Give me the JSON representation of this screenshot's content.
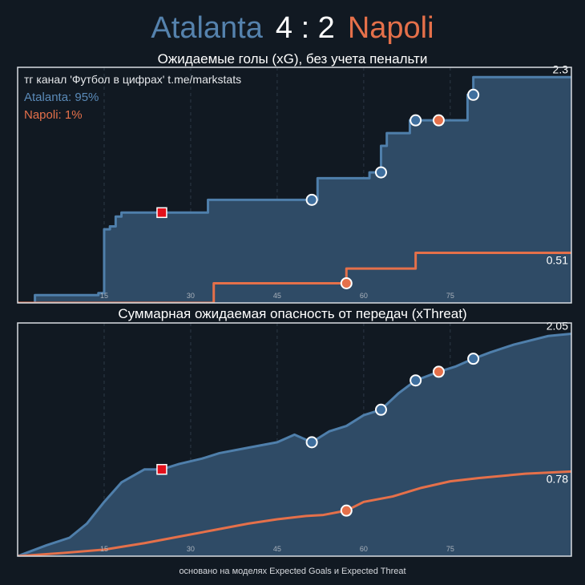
{
  "header": {
    "home": "Atalanta",
    "score": "4 : 2",
    "away": "Napoli"
  },
  "colors": {
    "home": "#4f7fab",
    "away": "#e5704a",
    "red_card": "#e3101b",
    "background": "#111922"
  },
  "footer": "основано на моделях Expected Goals и Expected Threat",
  "chart_data": [
    {
      "type": "area",
      "title": "Ожидаемые голы (xG), без учета пенальти",
      "watermark": "тг канал 'Футбол в цифрах'  t.me/markstats",
      "xlim": [
        0,
        96
      ],
      "ylim": [
        0,
        2.4
      ],
      "x_ticks": [
        "15",
        "30",
        "45",
        "60",
        "75"
      ],
      "x_tick_values": [
        15,
        30,
        45,
        60,
        75
      ],
      "end_labels": {
        "home": "2.3",
        "away": "0.51"
      },
      "series": [
        {
          "name": "Atalanta",
          "win_probability": "Atalanta: 95%",
          "step": true,
          "x": [
            0,
            3,
            12,
            14,
            15,
            16,
            17,
            18,
            25,
            32,
            33,
            42,
            51,
            52,
            60,
            61,
            62,
            63,
            64,
            67,
            68,
            73,
            74,
            78,
            79,
            96
          ],
          "y": [
            0,
            0.08,
            0.08,
            0.1,
            0.75,
            0.78,
            0.88,
            0.92,
            0.92,
            0.92,
            1.05,
            1.05,
            1.05,
            1.27,
            1.27,
            1.33,
            1.33,
            1.6,
            1.73,
            1.73,
            1.86,
            1.86,
            1.86,
            2.12,
            2.3,
            2.3
          ]
        },
        {
          "name": "Napoli",
          "win_probability": "Napoli: 1%",
          "step": true,
          "x": [
            0,
            33,
            34,
            56,
            57,
            68,
            69,
            84,
            85,
            96
          ],
          "y": [
            0,
            0,
            0.2,
            0.2,
            0.35,
            0.35,
            0.51,
            0.51,
            0.51,
            0.51
          ]
        }
      ],
      "goals_home_minutes": [
        51,
        63,
        69,
        79
      ],
      "goals_away_minutes": [
        57,
        73
      ],
      "red_card_minutes": [
        25
      ]
    },
    {
      "type": "area",
      "title": "Суммарная ожидаемая опасность от передач (xThreat)",
      "xlim": [
        0,
        96
      ],
      "ylim": [
        0,
        2.15
      ],
      "x_ticks": [
        "15",
        "30",
        "45",
        "60",
        "75"
      ],
      "x_tick_values": [
        15,
        30,
        45,
        60,
        75
      ],
      "end_labels": {
        "home": "2.05",
        "away": "0.78"
      },
      "series": [
        {
          "name": "Atalanta",
          "x": [
            0,
            5,
            9,
            12,
            15,
            18,
            22,
            25,
            28,
            32,
            35,
            40,
            45,
            48,
            51,
            54,
            57,
            60,
            63,
            66,
            69,
            73,
            76,
            79,
            82,
            86,
            92,
            96
          ],
          "y": [
            0,
            0.1,
            0.17,
            0.3,
            0.5,
            0.68,
            0.8,
            0.8,
            0.85,
            0.9,
            0.95,
            1.0,
            1.05,
            1.12,
            1.05,
            1.15,
            1.2,
            1.3,
            1.35,
            1.5,
            1.62,
            1.7,
            1.75,
            1.82,
            1.88,
            1.95,
            2.03,
            2.05
          ]
        },
        {
          "name": "Napoli",
          "x": [
            0,
            8,
            15,
            22,
            28,
            34,
            40,
            45,
            50,
            53,
            57,
            60,
            65,
            70,
            75,
            80,
            88,
            96
          ],
          "y": [
            0,
            0.03,
            0.06,
            0.12,
            0.18,
            0.24,
            0.3,
            0.34,
            0.37,
            0.38,
            0.42,
            0.5,
            0.55,
            0.63,
            0.69,
            0.72,
            0.76,
            0.78
          ]
        }
      ],
      "goals_home_minutes": [
        51,
        63,
        69,
        79
      ],
      "goals_away_minutes": [
        57,
        73
      ],
      "red_card_minutes": [
        25
      ]
    }
  ]
}
